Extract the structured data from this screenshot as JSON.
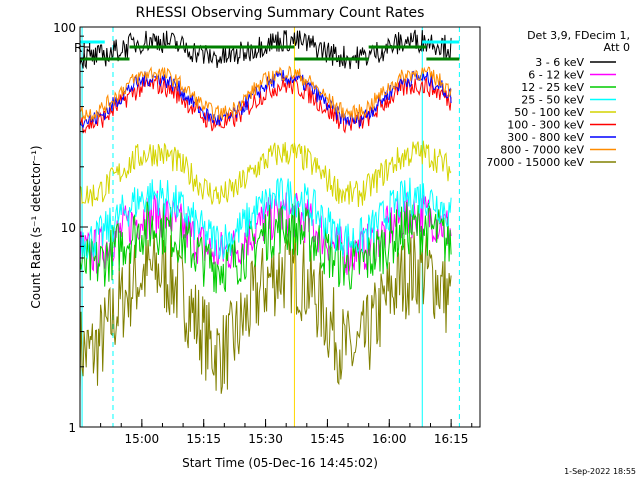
{
  "chart_data": {
    "type": "line",
    "title": "RHESSI Observing Summary Count Rates",
    "xlabel": "Start Time (05-Dec-16 14:45:02)",
    "ylabel": "Count Rate (s⁻¹ detector⁻¹)",
    "yscale": "log",
    "ylim": [
      1,
      100
    ],
    "xlim_minutes": [
      0,
      97
    ],
    "x_ticks": [
      "15:00",
      "15:15",
      "15:30",
      "15:45",
      "16:00",
      "16:15"
    ],
    "x_tick_minutes": [
      15,
      30,
      45,
      60,
      75,
      90
    ],
    "y_ticks": [
      "1",
      "10",
      "100"
    ],
    "legend_header": [
      "Det 3,9, FDecim 1,",
      "Att 0"
    ],
    "legend_placement": "right",
    "timestamp": "1-Sep-2022 18:55",
    "flag_label": "RH",
    "series": [
      {
        "name": "3 - 6 keV",
        "color": "#000000",
        "base": 78,
        "amp": 0.1,
        "noise": 0.06
      },
      {
        "name": "6 - 12 keV",
        "color": "#ff00ff",
        "base": 9.5,
        "amp": 0.22,
        "noise": 0.12
      },
      {
        "name": "12 - 25 keV",
        "color": "#00cc00",
        "base": 8.2,
        "amp": 0.22,
        "noise": 0.14
      },
      {
        "name": "25 - 50 keV",
        "color": "#00ffff",
        "base": 11.5,
        "amp": 0.25,
        "noise": 0.1
      },
      {
        "name": "50 - 100 keV",
        "color": "#d4d400",
        "base": 19,
        "amp": 0.24,
        "noise": 0.07
      },
      {
        "name": "100 - 300 keV",
        "color": "#ff0000",
        "base": 42,
        "amp": 0.22,
        "noise": 0.05
      },
      {
        "name": "300 - 800 keV",
        "color": "#0000ff",
        "base": 45,
        "amp": 0.24,
        "noise": 0.04
      },
      {
        "name": "800 - 7000 keV",
        "color": "#ff8c00",
        "base": 48,
        "amp": 0.23,
        "noise": 0.04
      },
      {
        "name": "7000 - 15000 keV",
        "color": "#808000",
        "base": 4.2,
        "amp": 0.44,
        "noise": 0.22
      }
    ],
    "markers_minutes": [
      0.5,
      8,
      52,
      83,
      92
    ],
    "marker_colors": [
      "#00ffff",
      "#00ffff",
      "#ffd700",
      "#00ffff",
      "#00ffff"
    ],
    "flag_segments_minutes": [
      [
        0,
        12
      ],
      [
        12,
        52
      ],
      [
        52,
        70
      ],
      [
        70,
        84
      ],
      [
        84,
        92
      ]
    ]
  }
}
